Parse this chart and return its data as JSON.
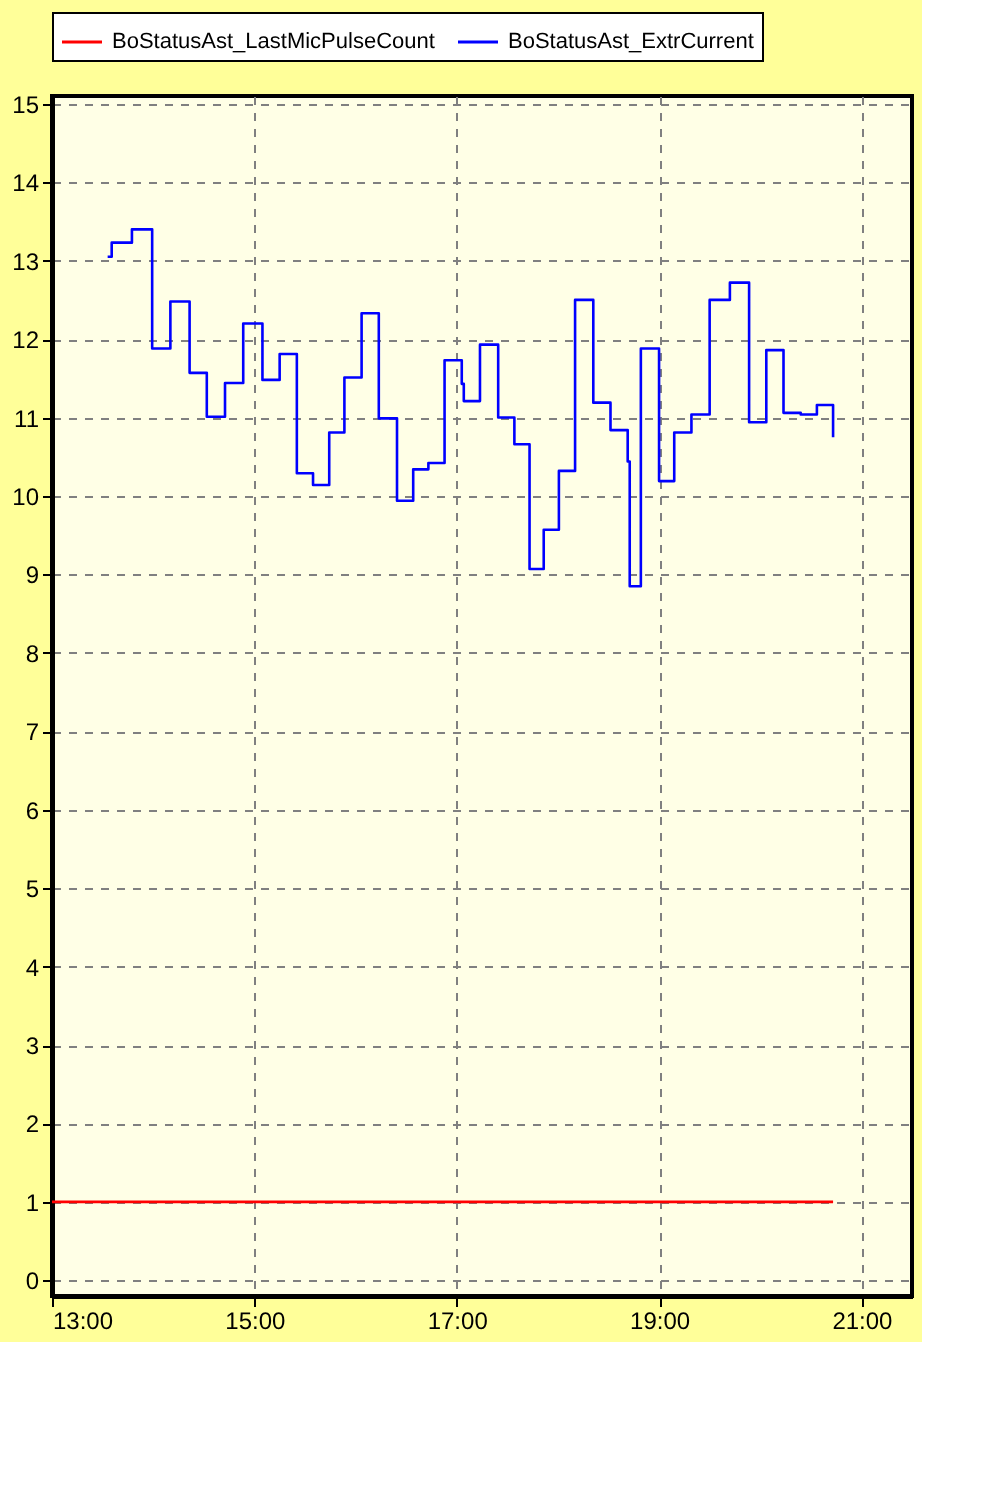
{
  "chart_data": {
    "type": "step",
    "series": [
      {
        "name": "BoStatusAst_LastMicPulseCount",
        "color": "#ff0000",
        "x": [
          13.0,
          20.72
        ],
        "values": [
          1,
          1
        ]
      },
      {
        "name": "BoStatusAst_ExtrCurrent",
        "color": "#0000ff",
        "x": [
          13.55,
          13.59,
          13.79,
          13.99,
          14.17,
          14.36,
          14.53,
          14.71,
          14.89,
          15.08,
          15.25,
          15.42,
          15.58,
          15.74,
          15.89,
          16.06,
          16.23,
          16.41,
          16.57,
          16.72,
          16.88,
          17.05,
          17.07,
          17.23,
          17.41,
          17.57,
          17.72,
          17.86,
          18.01,
          18.17,
          18.35,
          18.52,
          18.69,
          18.71,
          18.82,
          19.0,
          19.15,
          19.32,
          19.5,
          19.7,
          19.89,
          20.06,
          20.23,
          20.4,
          20.56,
          20.72
        ],
        "values": [
          13.05,
          13.23,
          13.4,
          11.88,
          12.48,
          11.57,
          11.01,
          11.44,
          12.2,
          11.48,
          11.81,
          10.29,
          10.14,
          10.81,
          11.51,
          12.33,
          10.99,
          9.94,
          10.34,
          10.42,
          11.73,
          11.43,
          11.21,
          11.93,
          11.0,
          10.66,
          9.07,
          9.57,
          10.32,
          12.5,
          11.19,
          10.84,
          10.44,
          8.85,
          11.88,
          10.19,
          10.81,
          11.04,
          12.5,
          12.72,
          10.94,
          11.86,
          11.06,
          11.04,
          11.16,
          10.75
        ]
      }
    ],
    "xlim": [
      13,
      21.5
    ],
    "xticks": [
      {
        "value": 13,
        "label": "13:00"
      },
      {
        "value": 15,
        "label": "15:00"
      },
      {
        "value": 17,
        "label": "17:00"
      },
      {
        "value": 19,
        "label": "19:00"
      },
      {
        "value": 21,
        "label": "21:00"
      }
    ],
    "ylim": [
      -0.2,
      15.1
    ],
    "yticks": [
      0,
      1,
      2,
      3,
      4,
      5,
      6,
      7,
      8,
      9,
      10,
      11,
      12,
      13,
      14,
      15
    ],
    "grid": true,
    "legend": "top",
    "marker": "none",
    "line_style": "solid"
  }
}
